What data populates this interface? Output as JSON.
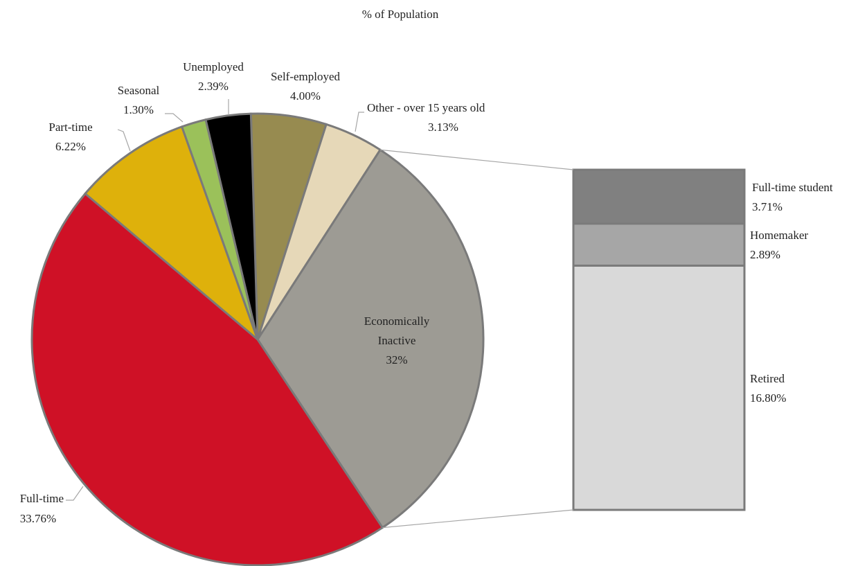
{
  "chart_data": {
    "type": "pie-of-bar",
    "title": "% of Population",
    "categories": [
      "Self-employed",
      "Other - over 15 years old",
      "Economically Inactive",
      "Full-time",
      "Part-time",
      "Seasonal",
      "Unemployed"
    ],
    "values": [
      4.0,
      3.13,
      32,
      33.76,
      6.22,
      1.3,
      2.39
    ],
    "value_labels": [
      "4.00%",
      "3.13%",
      "32%",
      "33.76%",
      "6.22%",
      "1.30%",
      "2.39%"
    ],
    "colors": [
      "#978b50",
      "#e6d8b8",
      "#9d9b94",
      "#cf1126",
      "#deb10b",
      "#9bc15a",
      "#000000"
    ],
    "bar": {
      "categories": [
        "Full-time student",
        "Homemaker",
        "Retired"
      ],
      "values": [
        3.71,
        2.89,
        16.8
      ],
      "value_labels": [
        "3.71%",
        "2.89%",
        "16.80%"
      ],
      "colors": [
        "#808080",
        "#a6a6a6",
        "#d9d9d9"
      ]
    }
  }
}
